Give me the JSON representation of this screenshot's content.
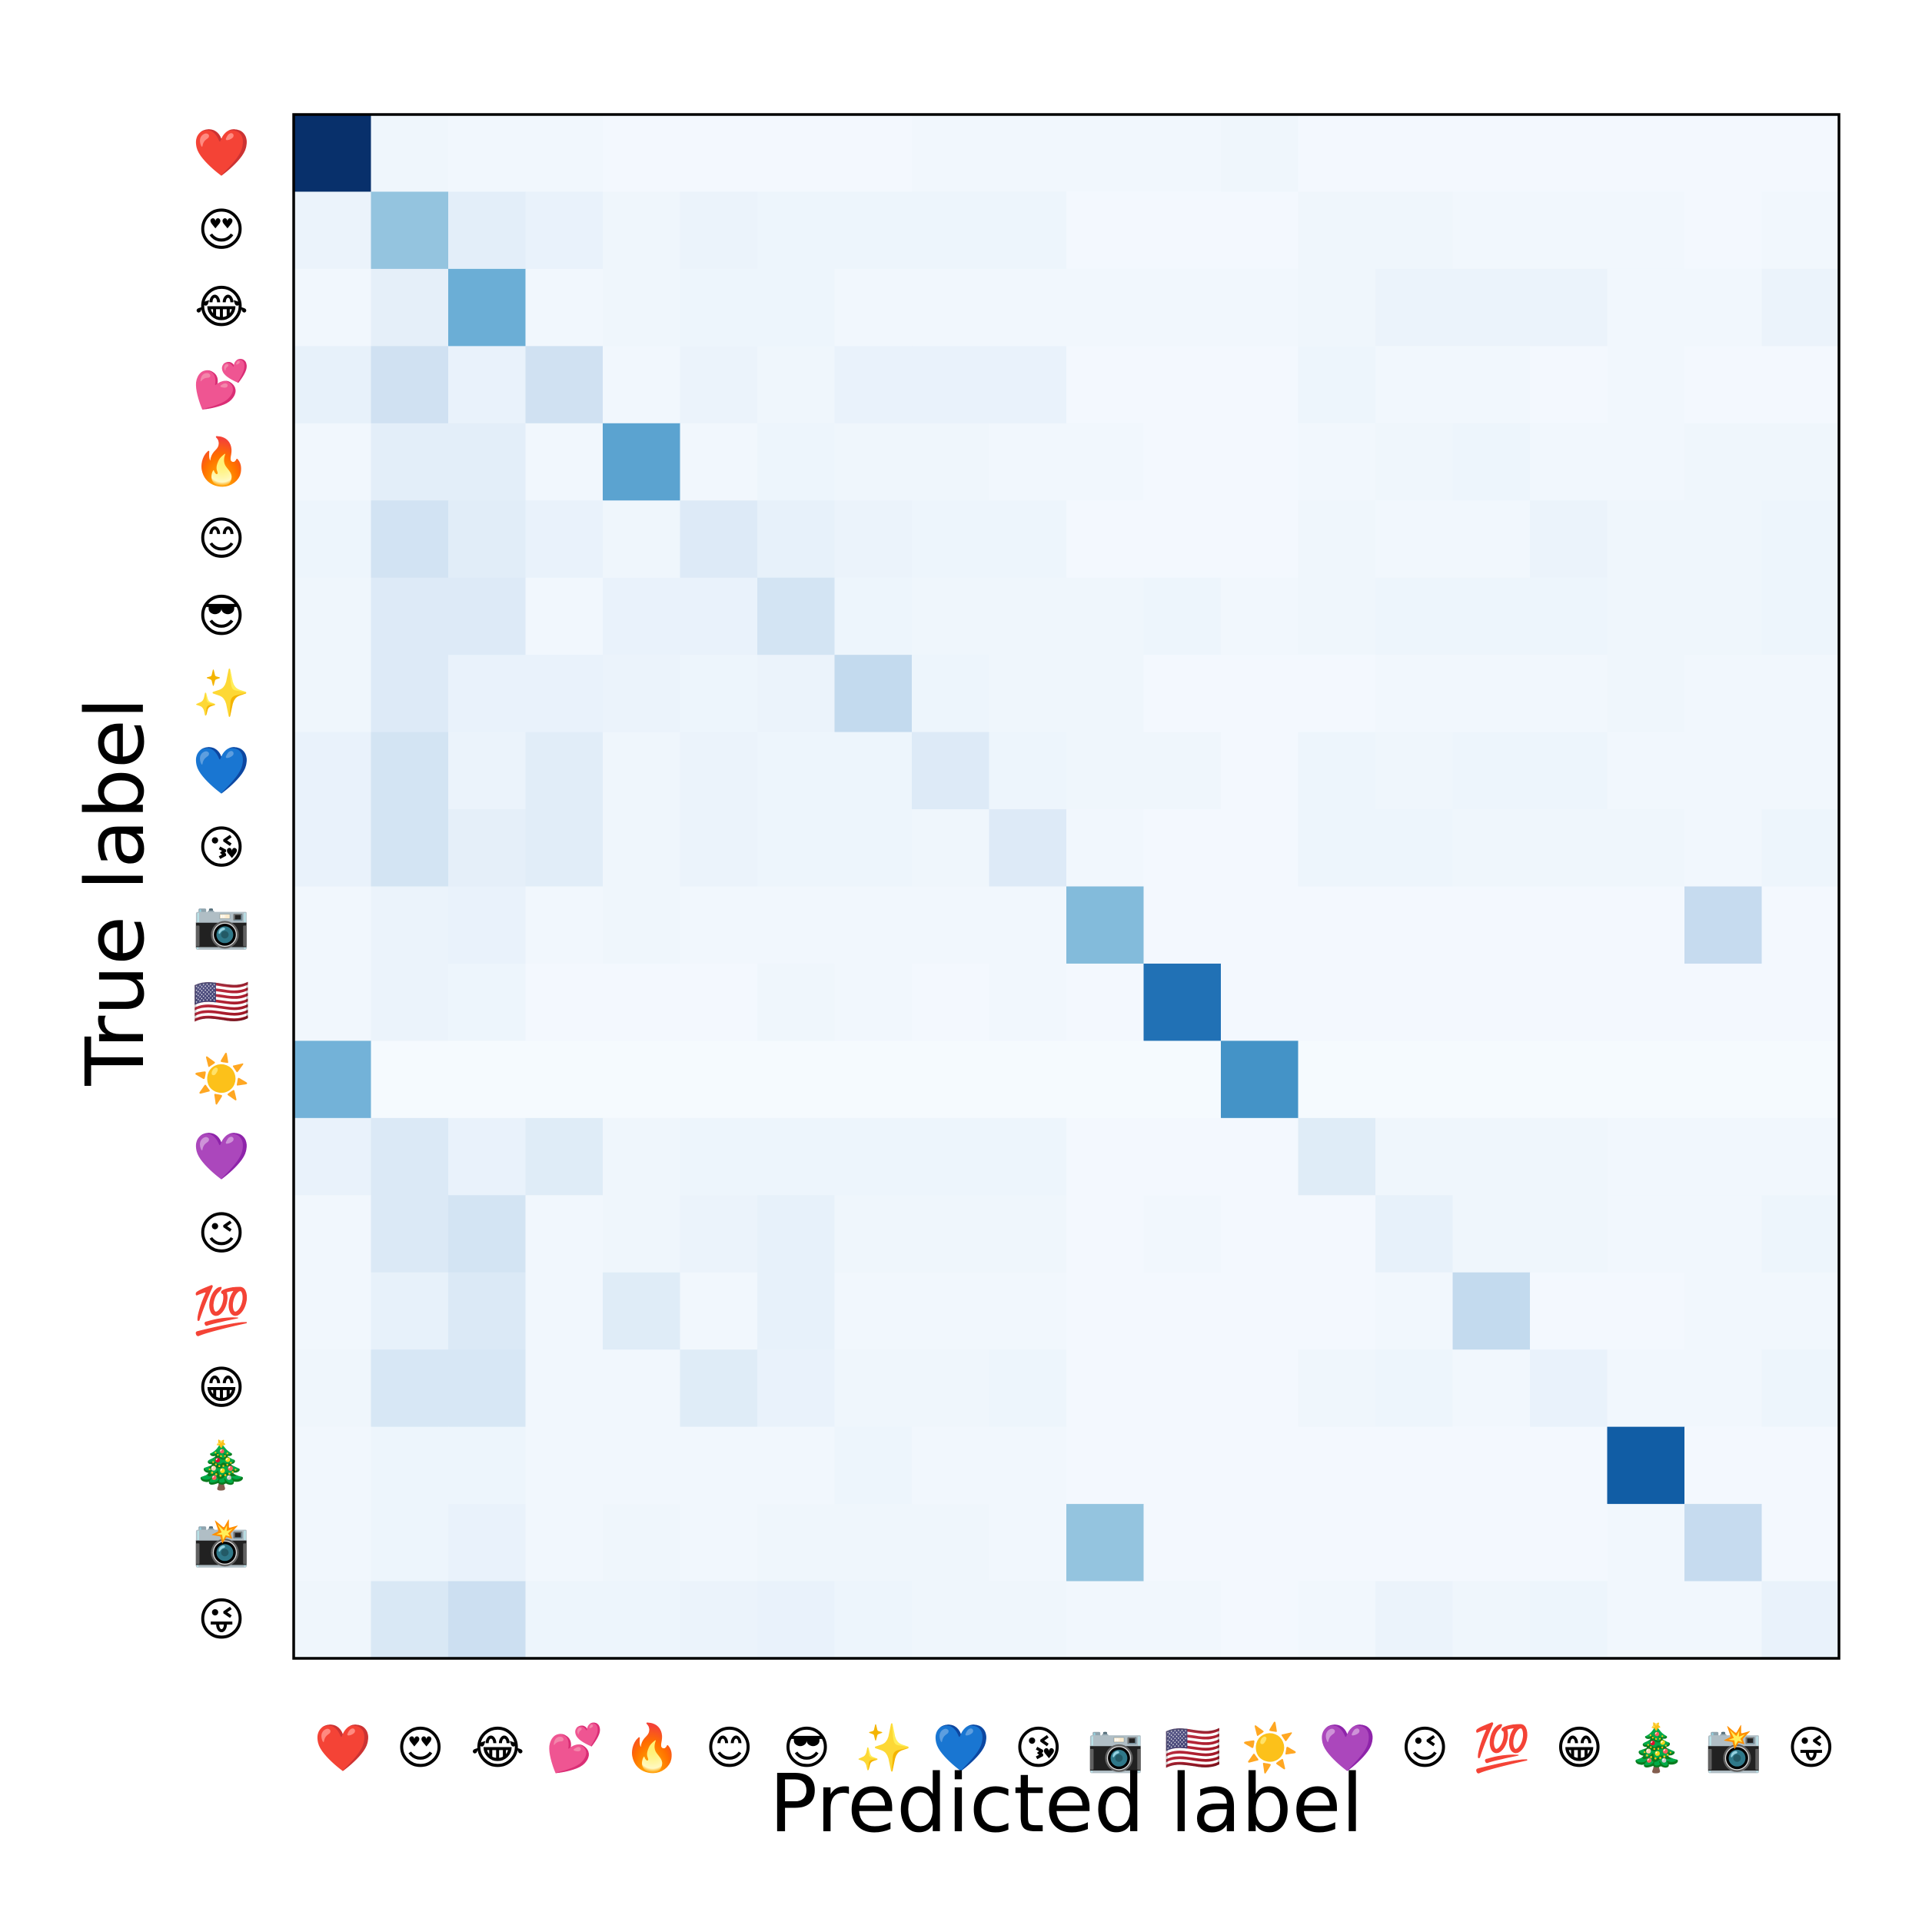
{
  "chart_data": {
    "type": "heatmap",
    "title": "",
    "xlabel": "Predicted label",
    "ylabel": "True label",
    "colormap": "Blues",
    "colormap_stops": [
      "#f7fbff",
      "#deebf7",
      "#c6dbef",
      "#9ecae1",
      "#6baed6",
      "#4292c6",
      "#2171b5",
      "#08519c",
      "#08306b"
    ],
    "value_range": [
      0,
      1
    ],
    "grid": false,
    "labels": [
      "❤️",
      "😍",
      "😂",
      "💕",
      "🔥",
      "😊",
      "😎",
      "✨",
      "💙",
      "😘",
      "📷",
      "🇺🇸",
      "☀️",
      "💜",
      "😉",
      "💯",
      "😁",
      "🎄",
      "📸",
      "😜"
    ],
    "label_names": [
      "red-heart",
      "heart-eyes",
      "tears-of-joy",
      "two-hearts",
      "fire",
      "smiling-face",
      "sunglasses",
      "sparkles",
      "blue-heart",
      "kissing-face",
      "camera",
      "us-flag",
      "sun",
      "purple-heart",
      "winking-face",
      "hundred-points",
      "grinning-face",
      "christmas-tree",
      "camera-with-flash",
      "winking-tongue"
    ],
    "matrix": [
      [
        1.0,
        0.04,
        0.03,
        0.03,
        0.02,
        0.02,
        0.02,
        0.02,
        0.03,
        0.03,
        0.03,
        0.03,
        0.04,
        0.02,
        0.02,
        0.02,
        0.02,
        0.02,
        0.02,
        0.02
      ],
      [
        0.06,
        0.4,
        0.1,
        0.07,
        0.04,
        0.06,
        0.05,
        0.05,
        0.05,
        0.05,
        0.02,
        0.02,
        0.02,
        0.04,
        0.04,
        0.03,
        0.03,
        0.03,
        0.02,
        0.03
      ],
      [
        0.03,
        0.09,
        0.5,
        0.03,
        0.04,
        0.05,
        0.05,
        0.03,
        0.03,
        0.03,
        0.03,
        0.03,
        0.03,
        0.04,
        0.06,
        0.06,
        0.06,
        0.03,
        0.03,
        0.06
      ],
      [
        0.08,
        0.2,
        0.07,
        0.2,
        0.03,
        0.06,
        0.04,
        0.07,
        0.07,
        0.07,
        0.02,
        0.02,
        0.02,
        0.05,
        0.03,
        0.03,
        0.02,
        0.03,
        0.02,
        0.02
      ],
      [
        0.03,
        0.1,
        0.1,
        0.03,
        0.55,
        0.03,
        0.05,
        0.04,
        0.04,
        0.03,
        0.03,
        0.02,
        0.02,
        0.03,
        0.04,
        0.05,
        0.03,
        0.03,
        0.04,
        0.04
      ],
      [
        0.05,
        0.19,
        0.11,
        0.07,
        0.04,
        0.13,
        0.08,
        0.06,
        0.05,
        0.05,
        0.02,
        0.02,
        0.02,
        0.04,
        0.03,
        0.03,
        0.06,
        0.04,
        0.04,
        0.05
      ],
      [
        0.04,
        0.13,
        0.13,
        0.03,
        0.07,
        0.07,
        0.18,
        0.05,
        0.04,
        0.04,
        0.04,
        0.05,
        0.03,
        0.04,
        0.05,
        0.05,
        0.05,
        0.04,
        0.04,
        0.05
      ],
      [
        0.04,
        0.13,
        0.07,
        0.07,
        0.06,
        0.05,
        0.06,
        0.26,
        0.05,
        0.04,
        0.04,
        0.02,
        0.02,
        0.02,
        0.03,
        0.03,
        0.03,
        0.04,
        0.03,
        0.03
      ],
      [
        0.07,
        0.18,
        0.06,
        0.11,
        0.04,
        0.06,
        0.05,
        0.05,
        0.13,
        0.05,
        0.04,
        0.04,
        0.02,
        0.05,
        0.04,
        0.05,
        0.05,
        0.03,
        0.03,
        0.03
      ],
      [
        0.07,
        0.18,
        0.09,
        0.11,
        0.04,
        0.06,
        0.05,
        0.05,
        0.04,
        0.13,
        0.03,
        0.02,
        0.02,
        0.05,
        0.05,
        0.04,
        0.04,
        0.04,
        0.03,
        0.05
      ],
      [
        0.03,
        0.06,
        0.07,
        0.03,
        0.04,
        0.03,
        0.03,
        0.03,
        0.03,
        0.03,
        0.44,
        0.02,
        0.02,
        0.02,
        0.02,
        0.02,
        0.02,
        0.02,
        0.25,
        0.02
      ],
      [
        0.03,
        0.06,
        0.05,
        0.02,
        0.02,
        0.02,
        0.04,
        0.03,
        0.02,
        0.03,
        0.02,
        0.75,
        0.02,
        0.02,
        0.02,
        0.02,
        0.02,
        0.02,
        0.02,
        0.02
      ],
      [
        0.48,
        0.01,
        0.01,
        0.01,
        0.01,
        0.01,
        0.01,
        0.01,
        0.01,
        0.01,
        0.01,
        0.01,
        0.62,
        0.01,
        0.01,
        0.01,
        0.01,
        0.01,
        0.01,
        0.01
      ],
      [
        0.07,
        0.14,
        0.07,
        0.12,
        0.04,
        0.05,
        0.05,
        0.05,
        0.05,
        0.05,
        0.02,
        0.02,
        0.02,
        0.12,
        0.04,
        0.04,
        0.04,
        0.03,
        0.03,
        0.03
      ],
      [
        0.03,
        0.14,
        0.18,
        0.03,
        0.04,
        0.06,
        0.08,
        0.04,
        0.04,
        0.04,
        0.02,
        0.03,
        0.02,
        0.02,
        0.08,
        0.04,
        0.04,
        0.03,
        0.03,
        0.05
      ],
      [
        0.03,
        0.08,
        0.14,
        0.03,
        0.12,
        0.03,
        0.08,
        0.03,
        0.03,
        0.03,
        0.02,
        0.02,
        0.02,
        0.02,
        0.03,
        0.26,
        0.02,
        0.02,
        0.03,
        0.03
      ],
      [
        0.04,
        0.16,
        0.16,
        0.03,
        0.03,
        0.12,
        0.07,
        0.04,
        0.04,
        0.05,
        0.02,
        0.02,
        0.02,
        0.04,
        0.05,
        0.03,
        0.07,
        0.03,
        0.03,
        0.05
      ],
      [
        0.03,
        0.05,
        0.05,
        0.03,
        0.03,
        0.03,
        0.03,
        0.05,
        0.03,
        0.03,
        0.02,
        0.02,
        0.02,
        0.02,
        0.02,
        0.02,
        0.02,
        0.83,
        0.02,
        0.02
      ],
      [
        0.03,
        0.05,
        0.07,
        0.03,
        0.04,
        0.03,
        0.04,
        0.04,
        0.04,
        0.03,
        0.4,
        0.02,
        0.02,
        0.02,
        0.02,
        0.02,
        0.02,
        0.03,
        0.25,
        0.02
      ],
      [
        0.04,
        0.15,
        0.22,
        0.05,
        0.05,
        0.06,
        0.07,
        0.05,
        0.04,
        0.04,
        0.03,
        0.03,
        0.02,
        0.03,
        0.06,
        0.04,
        0.05,
        0.03,
        0.03,
        0.07
      ]
    ]
  }
}
